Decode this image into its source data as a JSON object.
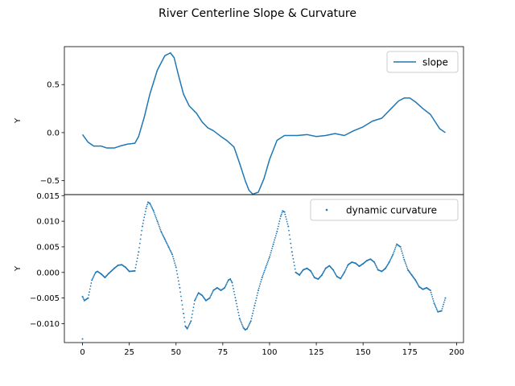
{
  "figure_title": "River Centerline Slope & Curvature",
  "colors": {
    "series": "#1f77b4",
    "axes": "#000000",
    "legend_border": "#cccccc"
  },
  "chart_data": [
    {
      "type": "line",
      "xlabel": "",
      "ylabel": "Y",
      "xlim": [
        -9.7,
        203.7
      ],
      "ylim": [
        -0.645,
        0.895
      ],
      "yticks": [
        -0.5,
        0.0,
        0.5
      ],
      "ytick_labels": [
        "−0.5",
        "0.0",
        "0.5"
      ],
      "xticks_visible": false,
      "legend": {
        "placement": "upper-right",
        "entries": [
          "slope"
        ]
      },
      "grid": false,
      "series": [
        {
          "name": "slope",
          "x": [
            0,
            3,
            6,
            10,
            13,
            17,
            20,
            24,
            28,
            30,
            33,
            36,
            40,
            44,
            47,
            49,
            51,
            54,
            57,
            61,
            64,
            67,
            70,
            74,
            77,
            81,
            84,
            87,
            89,
            91,
            94,
            97,
            100,
            104,
            108,
            111,
            115,
            120,
            125,
            130,
            135,
            140,
            145,
            150,
            155,
            160,
            165,
            169,
            172,
            175,
            178,
            182,
            186,
            189,
            191,
            194
          ],
          "y": [
            -0.02,
            -0.1,
            -0.14,
            -0.14,
            -0.16,
            -0.16,
            -0.14,
            -0.12,
            -0.11,
            -0.04,
            0.16,
            0.4,
            0.65,
            0.8,
            0.83,
            0.78,
            0.62,
            0.4,
            0.28,
            0.2,
            0.11,
            0.05,
            0.02,
            -0.04,
            -0.08,
            -0.15,
            -0.32,
            -0.5,
            -0.6,
            -0.64,
            -0.62,
            -0.48,
            -0.28,
            -0.08,
            -0.03,
            -0.03,
            -0.03,
            -0.02,
            -0.04,
            -0.03,
            -0.01,
            -0.03,
            0.02,
            0.06,
            0.12,
            0.15,
            0.25,
            0.33,
            0.36,
            0.36,
            0.32,
            0.25,
            0.19,
            0.1,
            0.04,
            0.0
          ]
        }
      ]
    },
    {
      "type": "scatter",
      "xlabel": "",
      "ylabel": "Y",
      "xlim": [
        -9.7,
        203.7
      ],
      "ylim": [
        -0.0137,
        0.0152
      ],
      "yticks": [
        -0.01,
        -0.005,
        0.0,
        0.005,
        0.01,
        0.015
      ],
      "ytick_labels": [
        "−0.010",
        "−0.005",
        "0.000",
        "0.005",
        "0.010",
        "0.015"
      ],
      "xticks": [
        0,
        25,
        50,
        75,
        100,
        125,
        150,
        175,
        200
      ],
      "xtick_labels": [
        "0",
        "25",
        "50",
        "75",
        "100",
        "125",
        "150",
        "175",
        "200"
      ],
      "legend": {
        "placement": "upper-right",
        "entries": [
          "dynamic curvature"
        ]
      },
      "grid": false,
      "series": [
        {
          "name": "dynamic curvature",
          "x": [
            0,
            1,
            3,
            5,
            7,
            8,
            10,
            12,
            14,
            17,
            19,
            21,
            23,
            25,
            28,
            30,
            32,
            34,
            35,
            36,
            38,
            40,
            42,
            44,
            46,
            48,
            50,
            52,
            54,
            55,
            56,
            58,
            60,
            62,
            64,
            66,
            68,
            70,
            72,
            74,
            76,
            78,
            79,
            80,
            82,
            84,
            86,
            87,
            88,
            90,
            92,
            94,
            96,
            98,
            100,
            102,
            104,
            106,
            107,
            108,
            110,
            112,
            114,
            116,
            118,
            120,
            122,
            124,
            126,
            128,
            130,
            132,
            134,
            136,
            138,
            140,
            142,
            144,
            146,
            148,
            150,
            152,
            154,
            156,
            158,
            160,
            162,
            164,
            166,
            168,
            170,
            172,
            174,
            176,
            178,
            180,
            182,
            184,
            186,
            188,
            190,
            192,
            194
          ],
          "y": [
            -0.0047,
            -0.0055,
            -0.005,
            -0.0015,
            0.0,
            0.0002,
            -0.0003,
            -0.001,
            -0.0002,
            0.0008,
            0.0014,
            0.0015,
            0.001,
            0.0002,
            0.0003,
            0.004,
            0.009,
            0.0125,
            0.0137,
            0.0135,
            0.012,
            0.01,
            0.008,
            0.0065,
            0.005,
            0.0035,
            0.001,
            -0.003,
            -0.008,
            -0.0105,
            -0.011,
            -0.0095,
            -0.0055,
            -0.004,
            -0.0045,
            -0.0055,
            -0.005,
            -0.0035,
            -0.003,
            -0.0035,
            -0.003,
            -0.0015,
            -0.0013,
            -0.002,
            -0.0055,
            -0.009,
            -0.0108,
            -0.0112,
            -0.011,
            -0.0095,
            -0.0065,
            -0.0035,
            -0.001,
            0.001,
            0.003,
            0.0055,
            0.008,
            0.011,
            0.012,
            0.0118,
            0.009,
            0.004,
            0.0,
            -0.0005,
            0.0005,
            0.0008,
            0.0003,
            -0.001,
            -0.0013,
            -0.0005,
            0.0008,
            0.0013,
            0.0005,
            -0.0008,
            -0.0012,
            0.0,
            0.0015,
            0.002,
            0.0018,
            0.0012,
            0.0017,
            0.0023,
            0.0026,
            0.002,
            0.0005,
            0.0002,
            0.0008,
            0.002,
            0.0035,
            0.0055,
            0.005,
            0.0025,
            0.0005,
            -0.0005,
            -0.0015,
            -0.0028,
            -0.0033,
            -0.003,
            -0.0035,
            -0.006,
            -0.0077,
            -0.0075,
            -0.005
          ]
        },
        {
          "name": "dynamic curvature",
          "x": [
            0
          ],
          "y": [
            -0.013
          ]
        }
      ]
    }
  ]
}
